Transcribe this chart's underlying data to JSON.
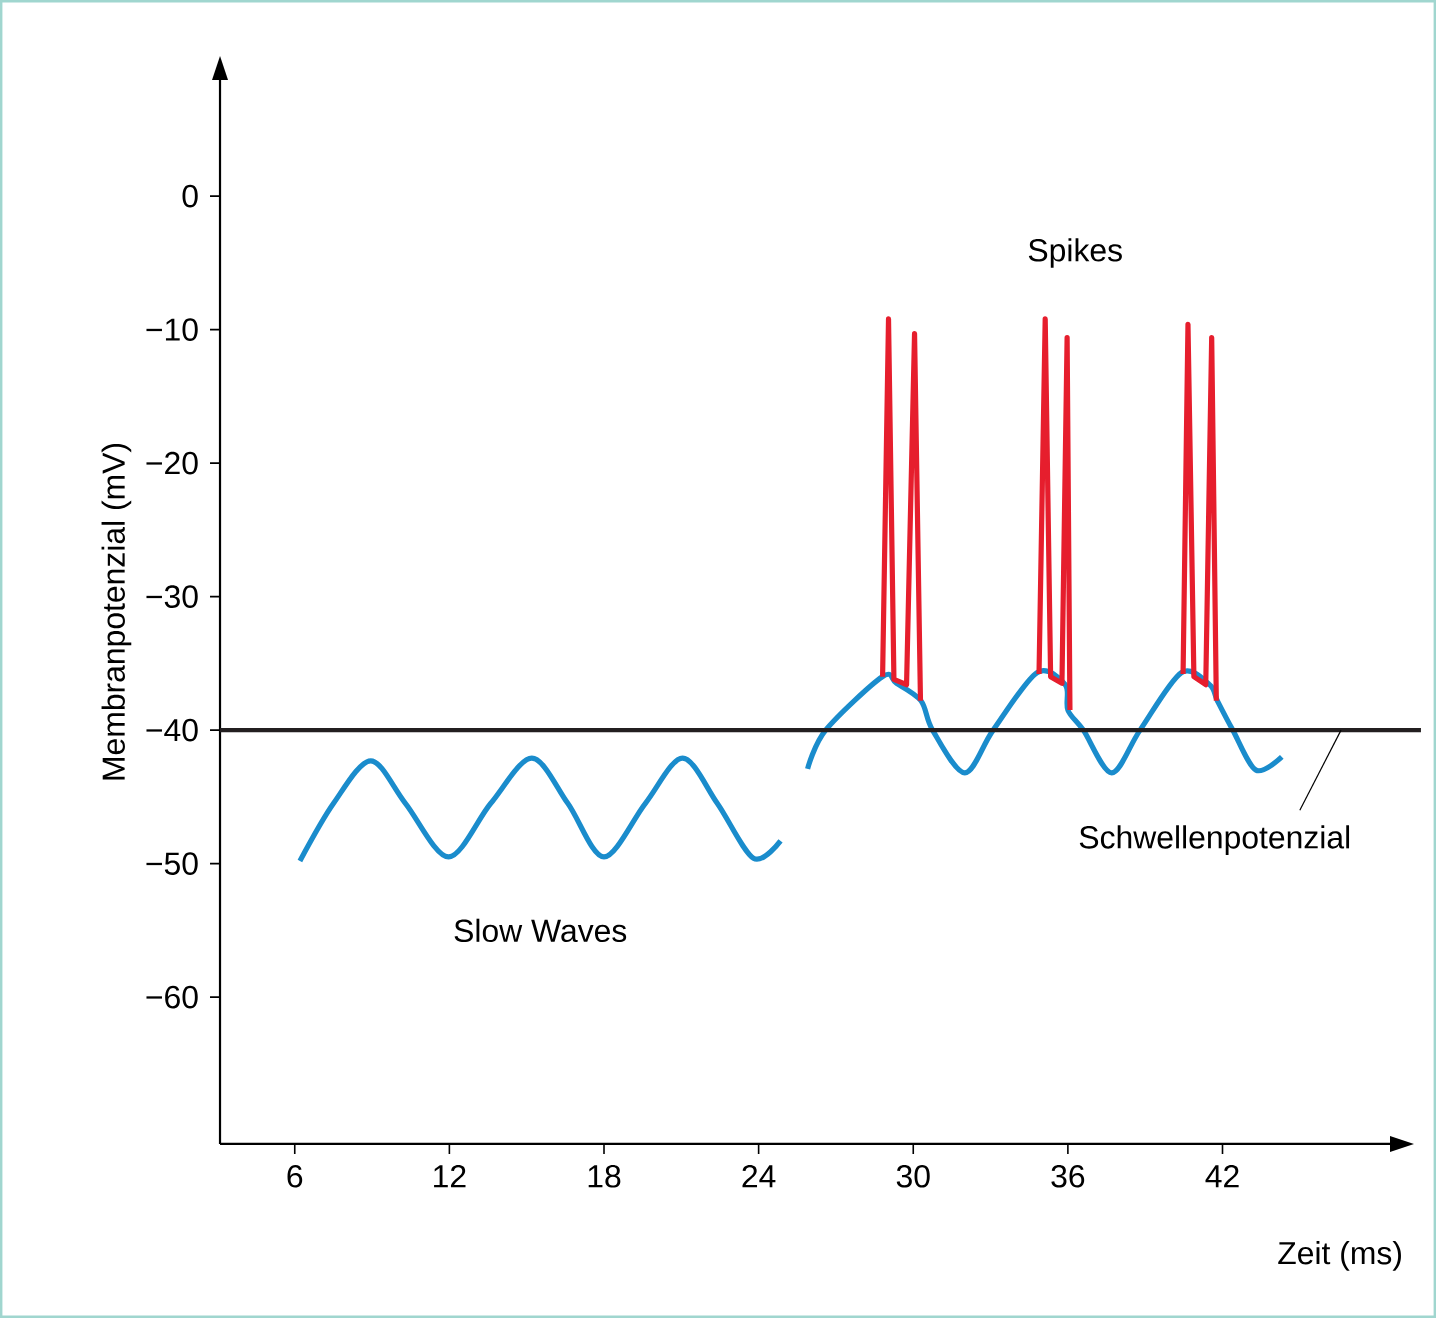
{
  "chart_data": {
    "type": "line",
    "xlabel": "Zeit (ms)",
    "ylabel": "Membranpotenzial (mV)",
    "xlim": [
      3.1,
      48.5
    ],
    "ylim": [
      -71,
      8.7
    ],
    "xticks": [
      6,
      12,
      18,
      24,
      30,
      36,
      42
    ],
    "yticks": [
      0,
      {
        "value": -10,
        "label": "−10"
      },
      {
        "value": -20,
        "label": "−20"
      },
      {
        "value": -30,
        "label": "−30"
      },
      {
        "value": -40,
        "label": "−40"
      },
      {
        "value": -50,
        "label": "−50"
      },
      {
        "value": -60,
        "label": "−60"
      }
    ],
    "ref_lines": [
      {
        "axis": "y",
        "value": -40,
        "label": "Schwellenpotenzial",
        "color": "#231f20"
      }
    ],
    "series": [
      {
        "name": "Slow Waves",
        "color": "#1a8ccc",
        "x": [
          6.2,
          7.5,
          8.95,
          10.3,
          11.97,
          13.6,
          15.2,
          16.6,
          18.0,
          19.6,
          21.05,
          22.4,
          23.8,
          24.85,
          25.3,
          25.9,
          26.6,
          28.8,
          29.35,
          30.3,
          30.75,
          32.0,
          33.1,
          34.8,
          35.9,
          36.0,
          36.6,
          37.7,
          38.8,
          40.4,
          41.5,
          41.8,
          42.4,
          43.3,
          44.3
        ],
        "values": [
          -49.8,
          -45.5,
          -42.3,
          -45.5,
          -49.5,
          -45.5,
          -42.1,
          -45.5,
          -49.5,
          -45.5,
          -42.1,
          -45.5,
          -49.6,
          -48.3,
          null,
          -42.9,
          -40,
          -36,
          -36.5,
          -37.8,
          -40,
          -43.2,
          -40,
          -35.7,
          -36.6,
          -38.5,
          -40,
          -43.2,
          -40,
          -35.7,
          -36.6,
          -37.8,
          -40,
          -43,
          -42
        ]
      },
      {
        "name": "Spikes",
        "color": "#e61e2d",
        "x": [
          28.81,
          29.04,
          29.25,
          29.74,
          30.05,
          30.28,
          32,
          34.88,
          35.12,
          35.33,
          35.77,
          35.97,
          36.08,
          38,
          40.47,
          40.66,
          40.89,
          41.35,
          41.58,
          41.76
        ],
        "values": [
          -36,
          -9.2,
          -36.2,
          -36.6,
          -10.3,
          -37.8,
          null,
          -35.8,
          -9.2,
          -36,
          -36.5,
          -10.6,
          -38.5,
          null,
          -35.8,
          -9.6,
          -36,
          -36.6,
          -10.6,
          -37.8
        ]
      }
    ]
  }
}
